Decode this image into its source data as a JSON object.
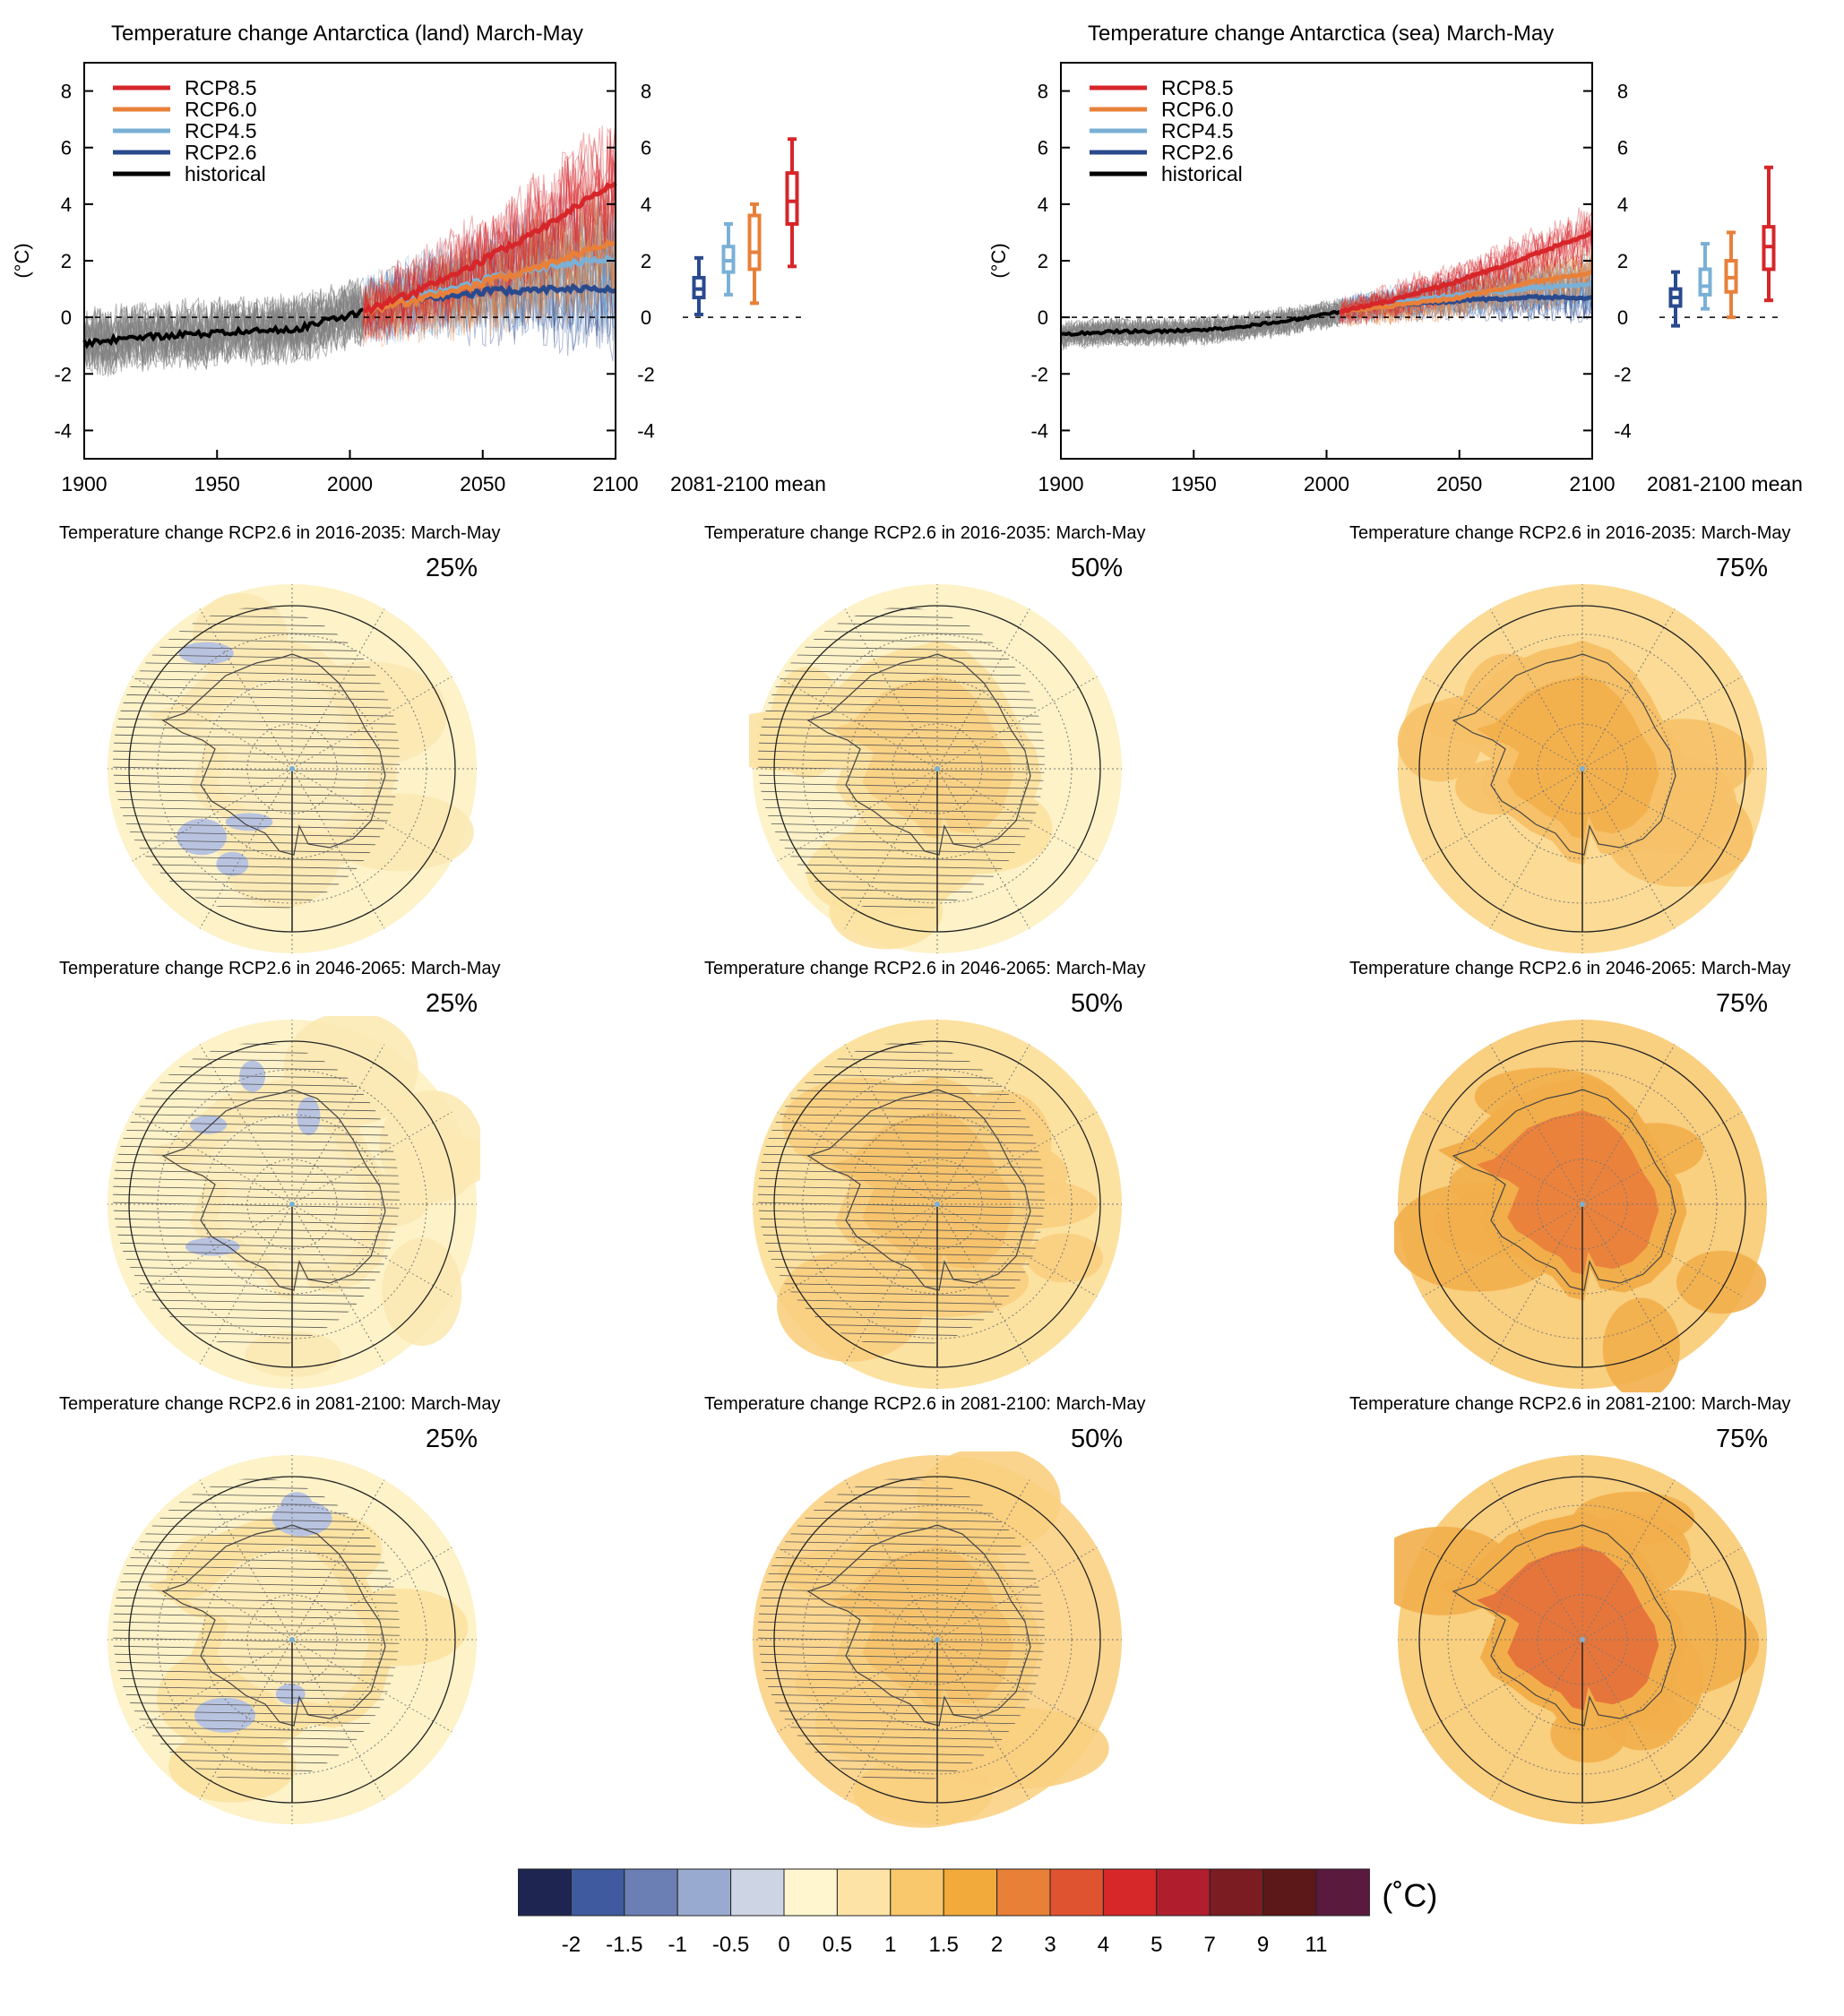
{
  "timeseries": [
    {
      "id": "land",
      "title": "Temperature change Antarctica (land) March-May",
      "ylabel": "(°C)",
      "xlim": [
        1900,
        2100
      ],
      "ylim": [
        -5,
        9
      ],
      "xticks": [
        "1900",
        "1950",
        "2000",
        "2050",
        "2100"
      ],
      "yticks": [
        "8",
        "6",
        "4",
        "2",
        "0",
        "-2",
        "-4"
      ],
      "box_axis_label": "2081-2100 mean",
      "legend": [
        "RCP8.5",
        "RCP6.0",
        "RCP4.5",
        "RCP2.6",
        "historical"
      ],
      "chart_data": {
        "type": "line",
        "series": [
          {
            "name": "historical",
            "color": "#000000",
            "x": [
              1900,
              1920,
              1940,
              1960,
              1980,
              2005
            ],
            "y": [
              -0.9,
              -0.7,
              -0.6,
              -0.5,
              -0.4,
              0.2
            ]
          },
          {
            "name": "RCP2.6",
            "color": "#2a4a8e",
            "x": [
              2005,
              2025,
              2050,
              2075,
              2100
            ],
            "y": [
              0.2,
              0.6,
              0.9,
              1.0,
              1.0
            ]
          },
          {
            "name": "RCP4.5",
            "color": "#7ab0d6",
            "x": [
              2005,
              2025,
              2050,
              2075,
              2100
            ],
            "y": [
              0.2,
              0.7,
              1.3,
              1.8,
              2.1
            ]
          },
          {
            "name": "RCP6.0",
            "color": "#e8803a",
            "x": [
              2005,
              2025,
              2050,
              2075,
              2100
            ],
            "y": [
              0.2,
              0.6,
              1.2,
              1.9,
              2.7
            ]
          },
          {
            "name": "RCP8.5",
            "color": "#d6262a",
            "x": [
              2005,
              2025,
              2050,
              2075,
              2100
            ],
            "y": [
              0.2,
              0.9,
              2.0,
              3.3,
              4.8
            ]
          }
        ],
        "boxes": [
          {
            "name": "RCP2.6",
            "color": "#2a4a8e",
            "min": 0.1,
            "q1": 0.7,
            "median": 1.0,
            "q3": 1.4,
            "max": 2.1
          },
          {
            "name": "RCP4.5",
            "color": "#7ab0d6",
            "min": 0.8,
            "q1": 1.6,
            "median": 2.0,
            "q3": 2.5,
            "max": 3.3
          },
          {
            "name": "RCP6.0",
            "color": "#e8803a",
            "min": 0.5,
            "q1": 1.7,
            "median": 2.3,
            "q3": 3.6,
            "max": 4.0
          },
          {
            "name": "RCP8.5",
            "color": "#d6262a",
            "min": 1.8,
            "q1": 3.3,
            "median": 4.1,
            "q3": 5.1,
            "max": 6.3
          }
        ]
      }
    },
    {
      "id": "sea",
      "title": "Temperature change Antarctica (sea) March-May",
      "ylabel": "(°C)",
      "xlim": [
        1900,
        2100
      ],
      "ylim": [
        -5,
        9
      ],
      "xticks": [
        "1900",
        "1950",
        "2000",
        "2050",
        "2100"
      ],
      "yticks": [
        "8",
        "6",
        "4",
        "2",
        "0",
        "-2",
        "-4"
      ],
      "box_axis_label": "2081-2100 mean",
      "legend": [
        "RCP8.5",
        "RCP6.0",
        "RCP4.5",
        "RCP2.6",
        "historical"
      ],
      "chart_data": {
        "type": "line",
        "series": [
          {
            "name": "historical",
            "color": "#000000",
            "x": [
              1900,
              1920,
              1940,
              1960,
              1980,
              2005
            ],
            "y": [
              -0.6,
              -0.5,
              -0.5,
              -0.4,
              -0.2,
              0.2
            ]
          },
          {
            "name": "RCP2.6",
            "color": "#2a4a8e",
            "x": [
              2005,
              2025,
              2050,
              2075,
              2100
            ],
            "y": [
              0.2,
              0.4,
              0.6,
              0.7,
              0.7
            ]
          },
          {
            "name": "RCP4.5",
            "color": "#7ab0d6",
            "x": [
              2005,
              2025,
              2050,
              2075,
              2100
            ],
            "y": [
              0.2,
              0.5,
              0.8,
              1.0,
              1.2
            ]
          },
          {
            "name": "RCP6.0",
            "color": "#e8803a",
            "x": [
              2005,
              2025,
              2050,
              2075,
              2100
            ],
            "y": [
              0.2,
              0.4,
              0.7,
              1.2,
              1.6
            ]
          },
          {
            "name": "RCP8.5",
            "color": "#d6262a",
            "x": [
              2005,
              2025,
              2050,
              2075,
              2100
            ],
            "y": [
              0.2,
              0.6,
              1.3,
              2.1,
              3.0
            ]
          }
        ],
        "boxes": [
          {
            "name": "RCP2.6",
            "color": "#2a4a8e",
            "min": -0.3,
            "q1": 0.4,
            "median": 0.7,
            "q3": 1.0,
            "max": 1.6
          },
          {
            "name": "RCP4.5",
            "color": "#7ab0d6",
            "min": 0.3,
            "q1": 0.8,
            "median": 1.1,
            "q3": 1.7,
            "max": 2.6
          },
          {
            "name": "RCP6.0",
            "color": "#e8803a",
            "min": 0.0,
            "q1": 0.9,
            "median": 1.4,
            "q3": 2.0,
            "max": 3.0
          },
          {
            "name": "RCP8.5",
            "color": "#d6262a",
            "min": 0.6,
            "q1": 1.7,
            "median": 2.5,
            "q3": 3.2,
            "max": 5.3
          }
        ]
      }
    }
  ],
  "maps": {
    "rows": [
      {
        "title": "Temperature change RCP2.6 in 2016-2035: March-May"
      },
      {
        "title": "Temperature change RCP2.6 in 2046-2065: March-May"
      },
      {
        "title": "Temperature change RCP2.6 in 2081-2100: March-May"
      }
    ],
    "percentiles": [
      "25%",
      "50%",
      "75%"
    ],
    "fill_levels": [
      [
        [
          "#fdf2c8",
          "#fce9b4",
          "#b8c3e0"
        ],
        [
          "#fdf2c8",
          "#fce2a1",
          "#f9cf80"
        ],
        [
          "#fbdb96",
          "#f6c168",
          "#f2ae4a"
        ]
      ],
      [
        [
          "#fdf2c8",
          "#fce9b4",
          "#b8c3e0"
        ],
        [
          "#fce2a1",
          "#f9cf80",
          "#f6c168"
        ],
        [
          "#f9cf80",
          "#f2ae4a",
          "#e97a3a"
        ]
      ],
      [
        [
          "#fdf2c8",
          "#fce2a1",
          "#b8c3e0"
        ],
        [
          "#fbd690",
          "#f9cf80",
          "#f6c168"
        ],
        [
          "#f9cf80",
          "#f2ae4a",
          "#e46b38"
        ]
      ]
    ]
  },
  "colorbar": {
    "unit": "(˚C)",
    "colors": [
      "#1e2550",
      "#3f5a9e",
      "#6b7fb4",
      "#99aad0",
      "#cdd5e5",
      "#fff6d0",
      "#fde3a5",
      "#f9c76c",
      "#f2aa3a",
      "#e88038",
      "#df5330",
      "#d62828",
      "#b01e2e",
      "#7a1c22",
      "#5c1719",
      "#5a1a3e"
    ],
    "labels": [
      "-2",
      "-1.5",
      "-1",
      "-0.5",
      "0",
      "0.5",
      "1",
      "1.5",
      "2",
      "3",
      "4",
      "5",
      "7",
      "9",
      "11"
    ]
  }
}
